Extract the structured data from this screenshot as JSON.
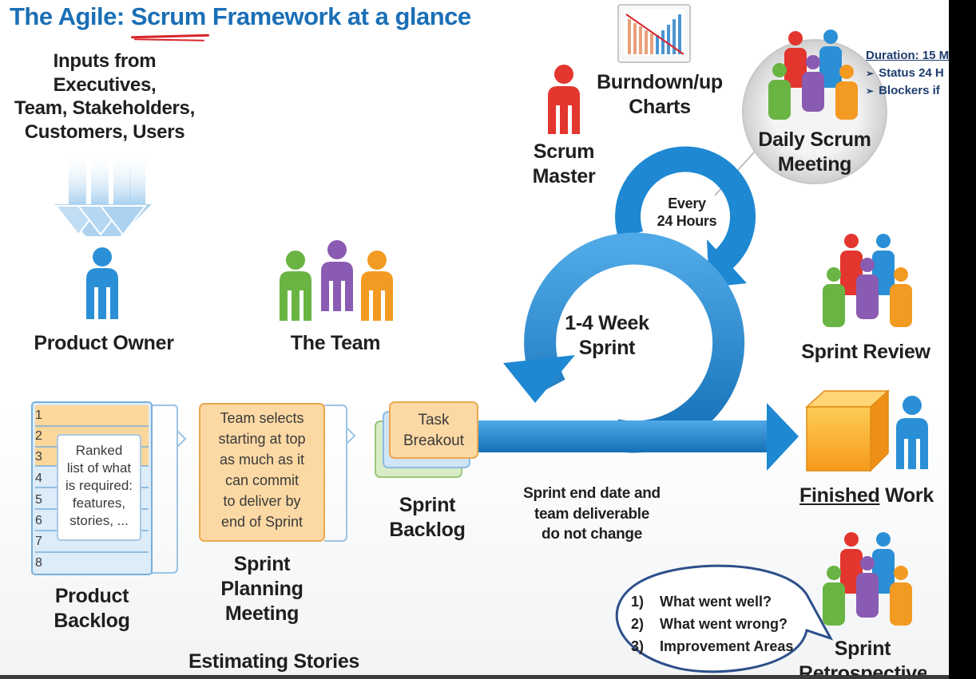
{
  "title": {
    "before": "The Agile: ",
    "highlight": "Scrum",
    "after": " Framework at a glance"
  },
  "inputs_text": [
    "Inputs from Executives,",
    "Team, Stakeholders,",
    "Customers, Users"
  ],
  "roles": {
    "product_owner": "Product Owner",
    "the_team": "The Team",
    "scrum_master": [
      "Scrum",
      "Master"
    ]
  },
  "burndown": [
    "Burndown/up",
    "Charts"
  ],
  "daily_scrum": [
    "Daily Scrum",
    "Meeting"
  ],
  "duration_note": {
    "line1": "Duration: 15 M",
    "bullets": [
      "Status 24 H",
      "Blockers if"
    ]
  },
  "cycle": {
    "every": [
      "Every",
      "24 Hours"
    ],
    "sprint": [
      "1-4 Week",
      "Sprint"
    ]
  },
  "product_backlog": {
    "rows": [
      "1",
      "2",
      "3",
      "4",
      "5",
      "6",
      "7",
      "8"
    ],
    "card": [
      "Ranked",
      "list of what",
      "is required:",
      "features,",
      "stories, ..."
    ],
    "label": [
      "Product",
      "Backlog"
    ]
  },
  "sprint_planning": {
    "card": [
      "Team selects",
      "starting at top",
      "as much as it",
      "can commit",
      "to deliver by",
      "end of Sprint"
    ],
    "label": [
      "Sprint",
      "Planning",
      "Meeting"
    ],
    "sublabel": "Estimating Stories"
  },
  "sprint_backlog": {
    "card": [
      "Task",
      "Breakout"
    ],
    "label": [
      "Sprint",
      "Backlog"
    ]
  },
  "sprint_note": [
    "Sprint end date and",
    "team deliverable",
    "do not change"
  ],
  "sprint_review": "Sprint Review",
  "finished_work": {
    "underlined": "Finished",
    "rest": " Work"
  },
  "retrospective": {
    "items": [
      {
        "num": "1)",
        "text": "What went well?"
      },
      {
        "num": "2)",
        "text": "What went wrong?"
      },
      {
        "num": "3)",
        "text": "Improvement Areas"
      }
    ],
    "label": [
      "Sprint",
      "Retrospective"
    ]
  },
  "colors": {
    "title_blue": "#1b6fb6",
    "arrow_blue": "#1e88d2",
    "person_blue": "#2a8fd6",
    "person_red": "#e2362e",
    "person_green": "#6ab444",
    "person_purple": "#8a5bb2",
    "person_orange": "#f39a22",
    "card_orange": "#fcd9a4",
    "annotation_red": "#d7262b"
  }
}
